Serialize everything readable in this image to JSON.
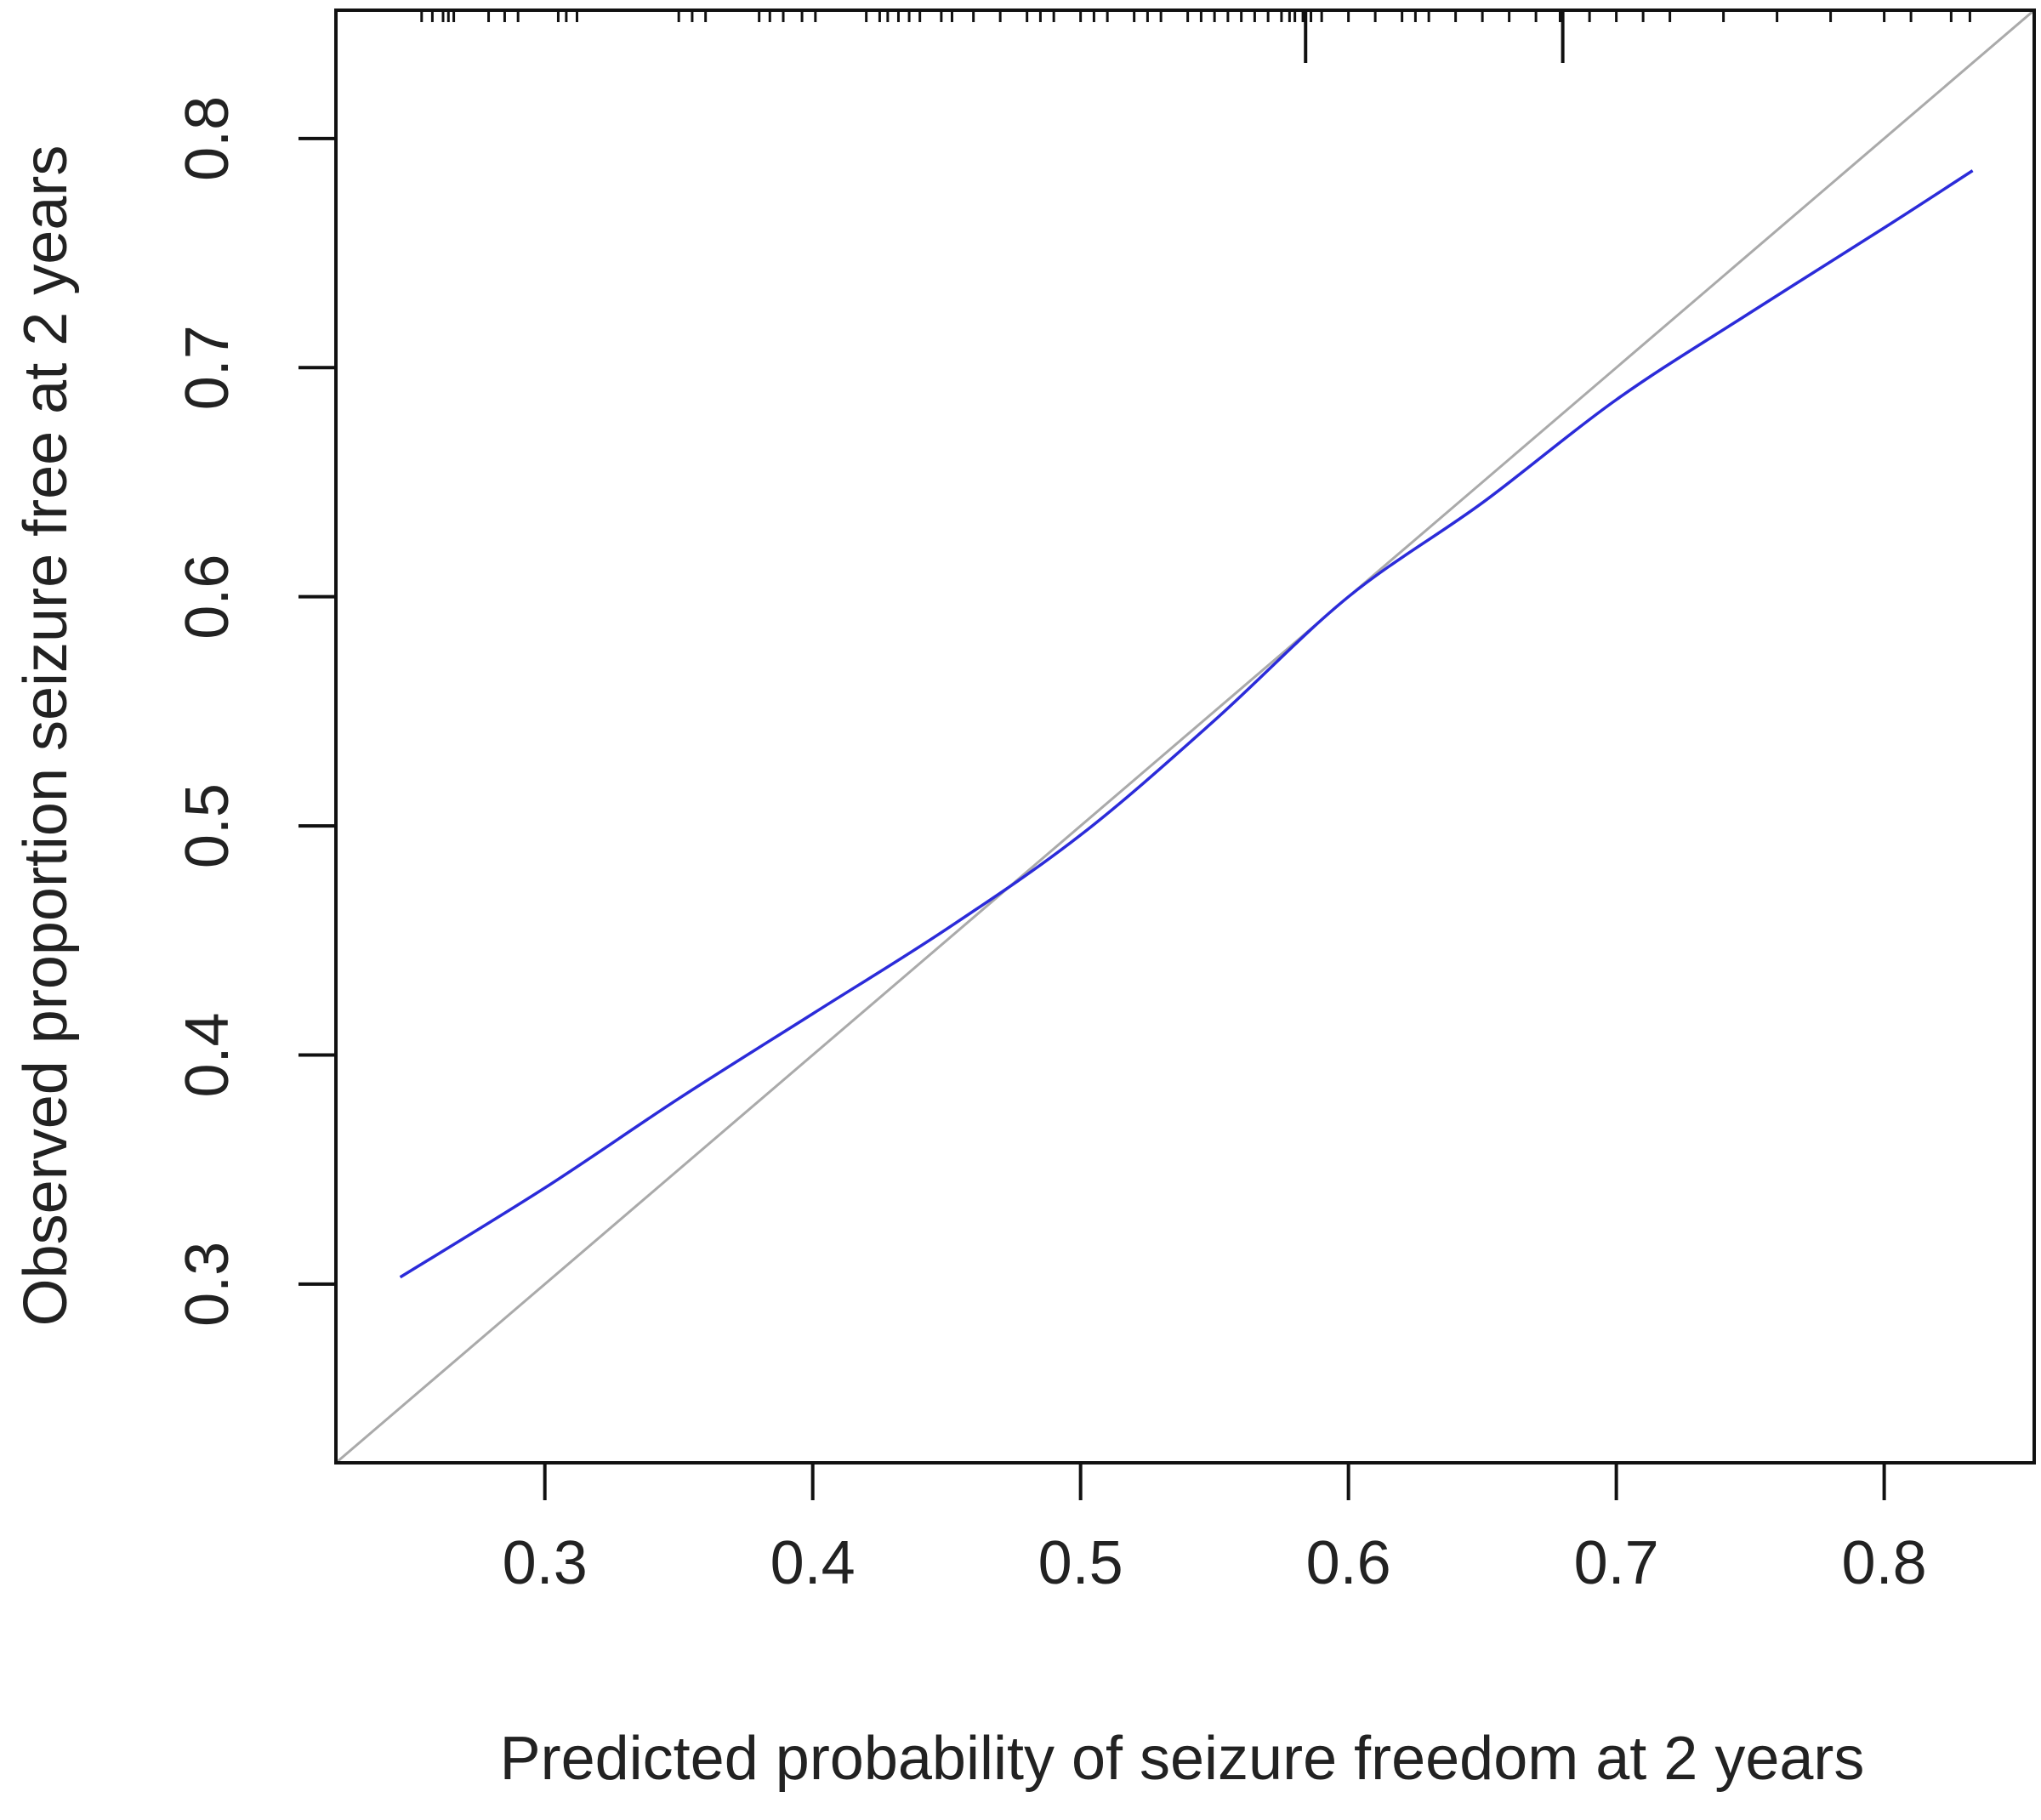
{
  "chart_data": {
    "type": "line",
    "title": "",
    "xlabel": "Predicted probability of seizure freedom at 2 years",
    "ylabel": "Observed proportion seizure free at 2 years",
    "xlim": [
      0.222,
      0.856
    ],
    "ylim": [
      0.222,
      0.856
    ],
    "x_ticks": [
      0.3,
      0.4,
      0.5,
      0.6,
      0.7,
      0.8
    ],
    "x_tick_labels": [
      "0.3",
      "0.4",
      "0.5",
      "0.6",
      "0.7",
      "0.8"
    ],
    "y_ticks": [
      0.3,
      0.4,
      0.5,
      0.6,
      0.7,
      0.8
    ],
    "y_tick_labels": [
      "0.3",
      "0.4",
      "0.5",
      "0.6",
      "0.7",
      "0.8"
    ],
    "grid": false,
    "series": [
      {
        "role": "calibration-curve",
        "color": "#2b2bd9",
        "x": [
          0.246,
          0.3,
          0.35,
          0.4,
          0.45,
          0.5,
          0.55,
          0.6,
          0.65,
          0.7,
          0.75,
          0.8,
          0.833
        ],
        "y": [
          0.303,
          0.342,
          0.381,
          0.418,
          0.455,
          0.496,
          0.546,
          0.6,
          0.641,
          0.686,
          0.724,
          0.761,
          0.786
        ]
      },
      {
        "role": "reference-diagonal",
        "color": "#aaaaaa",
        "x": [
          0.222,
          0.856
        ],
        "y": [
          0.222,
          0.856
        ]
      }
    ],
    "rug_top_x": [
      0.254,
      0.258,
      0.262,
      0.264,
      0.266,
      0.279,
      0.285,
      0.29,
      0.305,
      0.308,
      0.312,
      0.35,
      0.355,
      0.36,
      0.38,
      0.384,
      0.389,
      0.396,
      0.401,
      0.42,
      0.425,
      0.428,
      0.432,
      0.436,
      0.44,
      0.448,
      0.452,
      0.46,
      0.47,
      0.48,
      0.485,
      0.49,
      0.5,
      0.505,
      0.51,
      0.52,
      0.525,
      0.53,
      0.54,
      0.545,
      0.55,
      0.555,
      0.56,
      0.565,
      0.57,
      0.575,
      0.578,
      0.58,
      0.583,
      0.586,
      0.59,
      0.6,
      0.61,
      0.62,
      0.625,
      0.63,
      0.64,
      0.65,
      0.66,
      0.67,
      0.679,
      0.69,
      0.7,
      0.71,
      0.72,
      0.74,
      0.76,
      0.78,
      0.8,
      0.81,
      0.825,
      0.832
    ],
    "rug_top_long_x": [
      0.584,
      0.68
    ]
  }
}
